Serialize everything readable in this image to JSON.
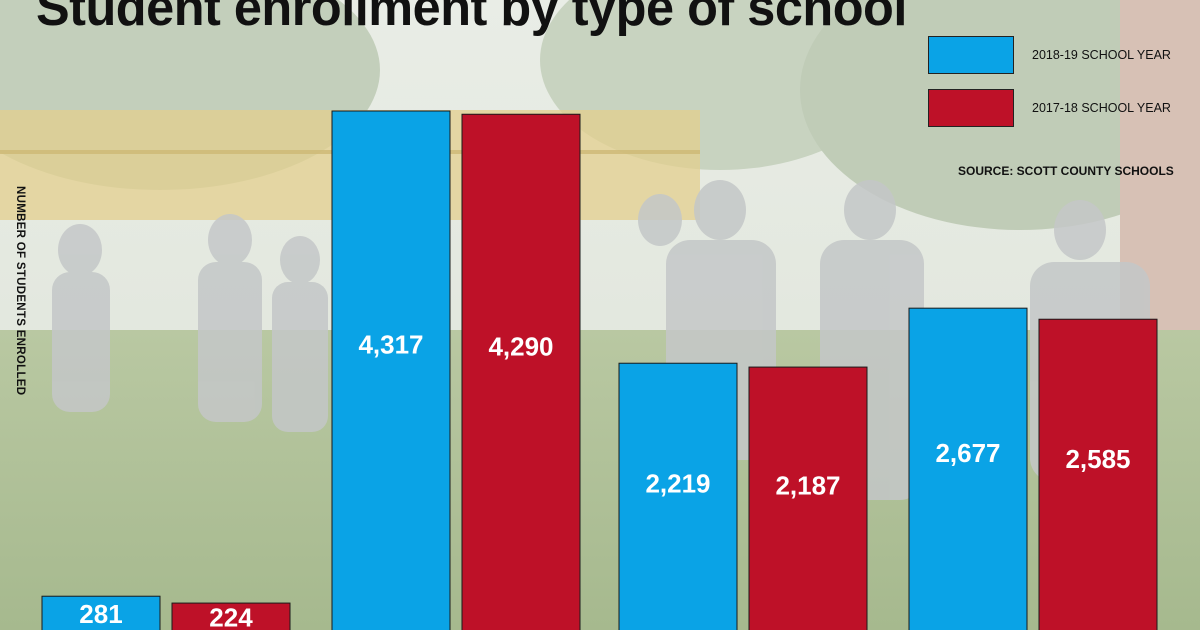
{
  "chart_data": {
    "type": "bar",
    "title": "Student enrollment by type of school",
    "ylabel": "NUMBER OF STUDENTS ENROLLED",
    "source": "SOURCE: SCOTT COUNTY SCHOOLS",
    "legend_position": "top-right",
    "categories": [
      "",
      "",
      "",
      ""
    ],
    "series": [
      {
        "name": "2018-19 SCHOOL YEAR",
        "color": "#0aa3e6",
        "values": [
          281,
          4317,
          2219,
          2677
        ]
      },
      {
        "name": "2017-18 SCHOOL YEAR",
        "color": "#be1128",
        "values": [
          224,
          4290,
          2187,
          2585
        ]
      }
    ],
    "ylim": [
      0,
      4900
    ],
    "grid": false,
    "value_labels": [
      "281",
      "4,317",
      "2,219",
      "2,677",
      "224",
      "4,290",
      "2,187",
      "2,585"
    ]
  }
}
